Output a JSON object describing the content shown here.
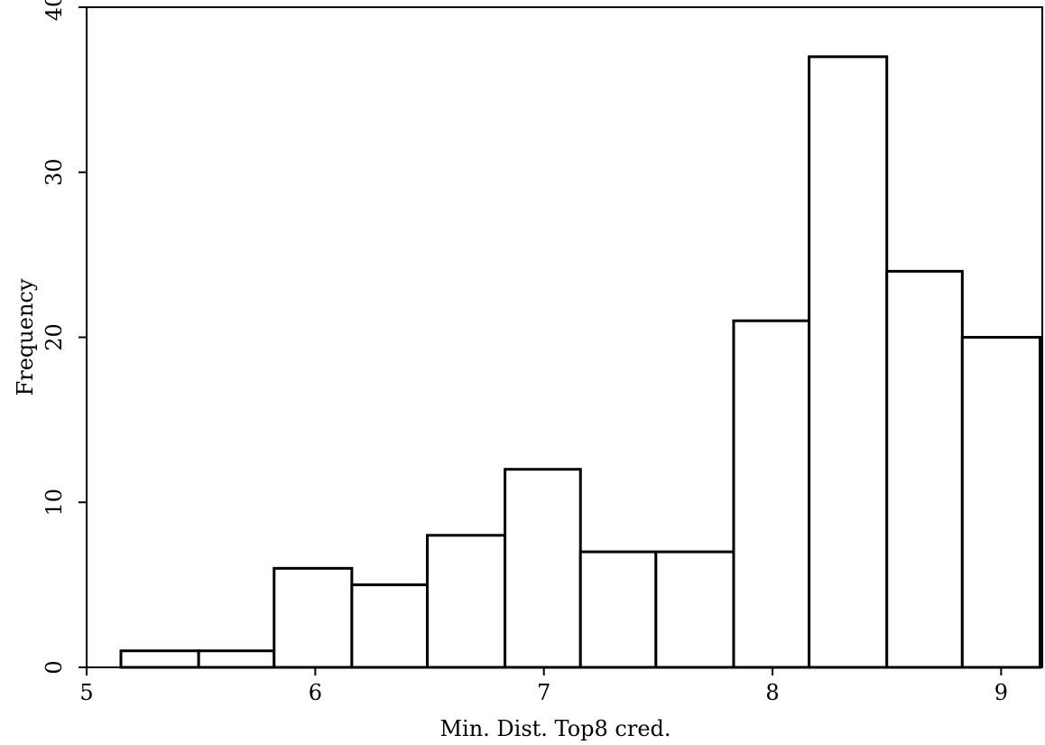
{
  "chart_data": {
    "type": "bar",
    "xlabel": "Min. Dist. Top8 cred.",
    "ylabel": "Frequency",
    "xlim": [
      5,
      9.18
    ],
    "ylim": [
      0,
      40
    ],
    "xticks": [
      5,
      6,
      7,
      8,
      9
    ],
    "yticks": [
      0,
      10,
      20,
      30,
      40
    ],
    "bins": [
      {
        "x0": 5.15,
        "x1": 5.49,
        "count": 1
      },
      {
        "x0": 5.49,
        "x1": 5.82,
        "count": 1
      },
      {
        "x0": 5.82,
        "x1": 6.16,
        "count": 6
      },
      {
        "x0": 6.16,
        "x1": 6.49,
        "count": 5
      },
      {
        "x0": 6.49,
        "x1": 6.83,
        "count": 8
      },
      {
        "x0": 6.83,
        "x1": 7.16,
        "count": 12
      },
      {
        "x0": 7.16,
        "x1": 7.49,
        "count": 7
      },
      {
        "x0": 7.49,
        "x1": 7.83,
        "count": 7
      },
      {
        "x0": 7.83,
        "x1": 8.16,
        "count": 21
      },
      {
        "x0": 8.16,
        "x1": 8.5,
        "count": 37
      },
      {
        "x0": 8.5,
        "x1": 8.83,
        "count": 24
      },
      {
        "x0": 8.83,
        "x1": 9.17,
        "count": 20
      }
    ],
    "fill_color": "#ffffff",
    "stroke_color": "#000000"
  }
}
